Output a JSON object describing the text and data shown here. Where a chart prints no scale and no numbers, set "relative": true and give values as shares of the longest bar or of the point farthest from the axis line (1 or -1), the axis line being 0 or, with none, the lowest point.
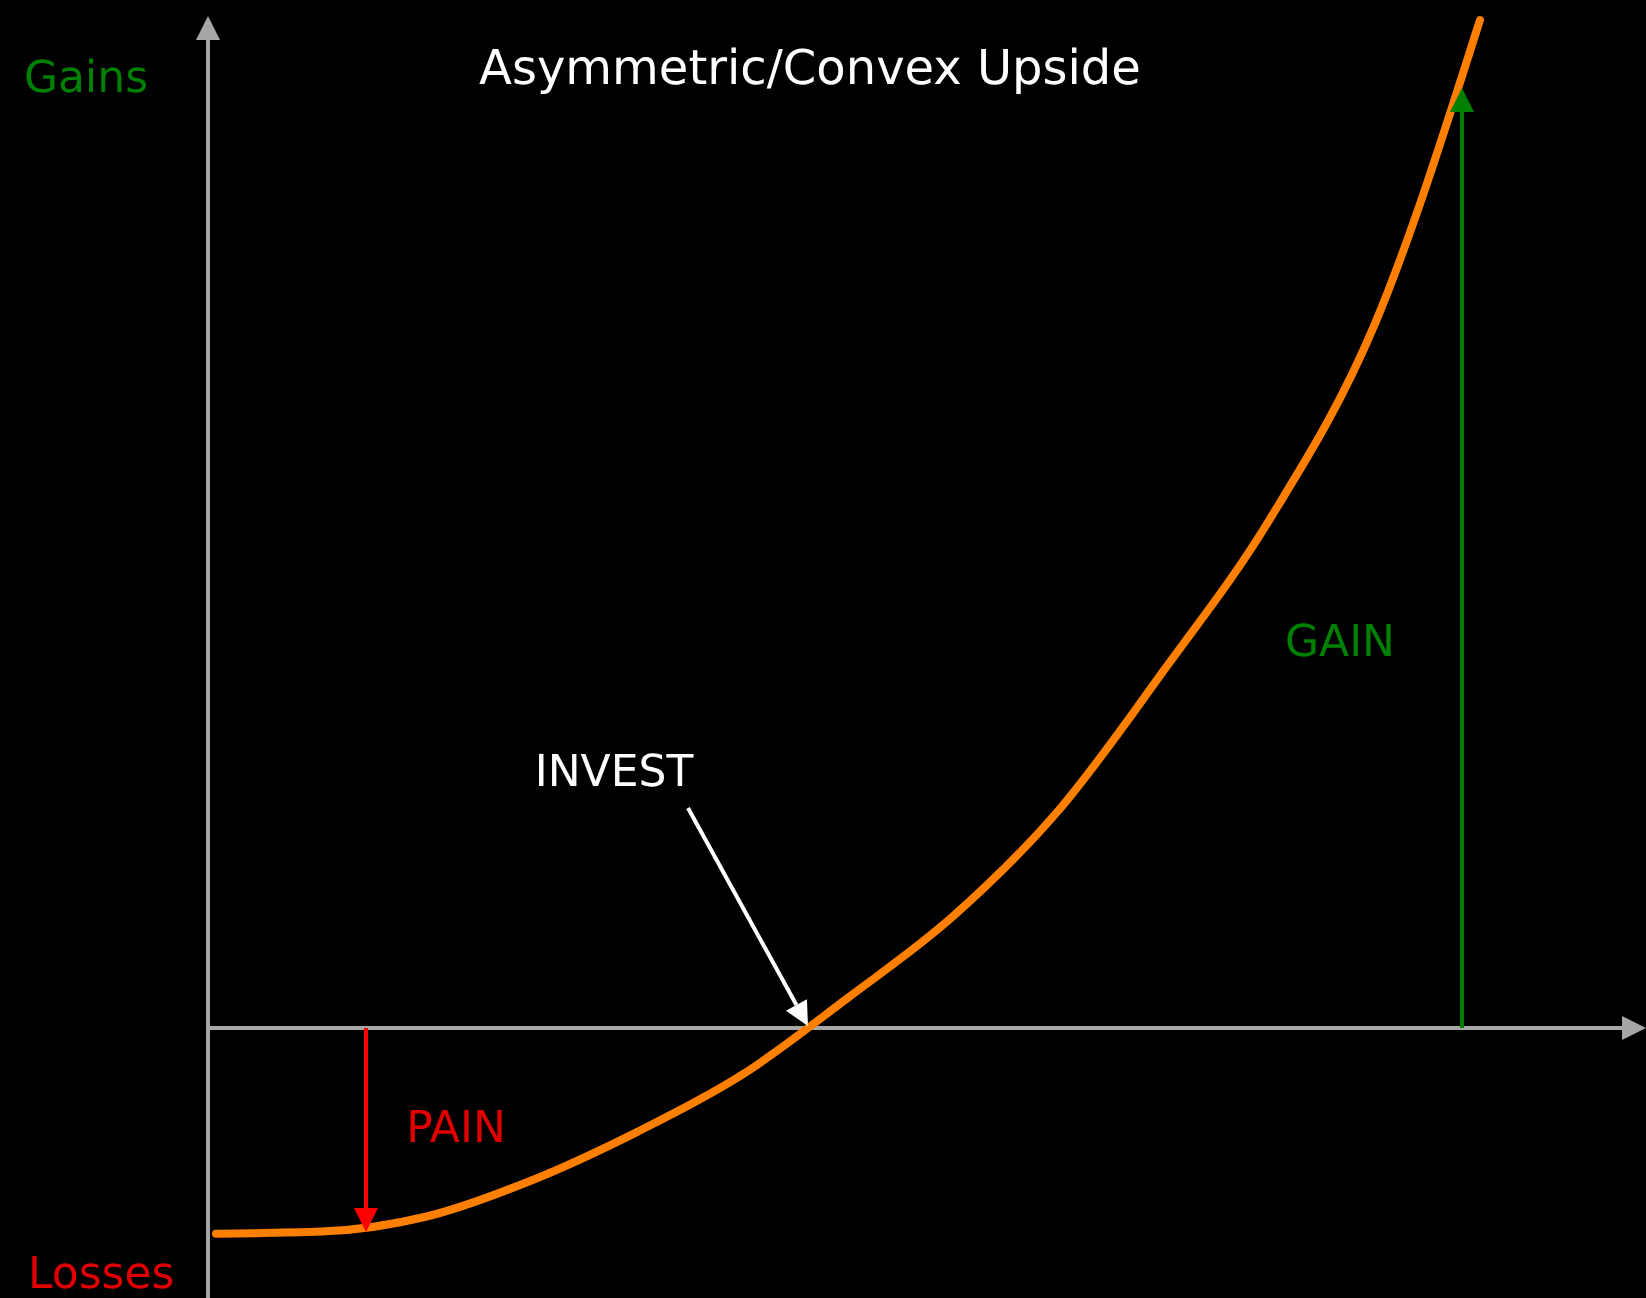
{
  "chart_data": {
    "type": "line",
    "title": "Asymmetric/Convex Upside",
    "relative": true,
    "categories": [
      null,
      null,
      null,
      null,
      null,
      null,
      null,
      null,
      null,
      null,
      null,
      null,
      null
    ],
    "series": [
      {
        "color": "#ff8000",
        "values": [
          -0.204,
          -0.202,
          -0.187,
          -0.151,
          -0.103,
          -0.046,
          0.03,
          0.111,
          0.216,
          0.355,
          0.504,
          0.698,
          1
        ]
      }
    ],
    "annotations": [
      "Gains",
      "Losses",
      "INVEST",
      "GAIN",
      "PAIN"
    ],
    "grid": false,
    "marker": "none",
    "line_style": "solid",
    "tick_labels": false
  }
}
